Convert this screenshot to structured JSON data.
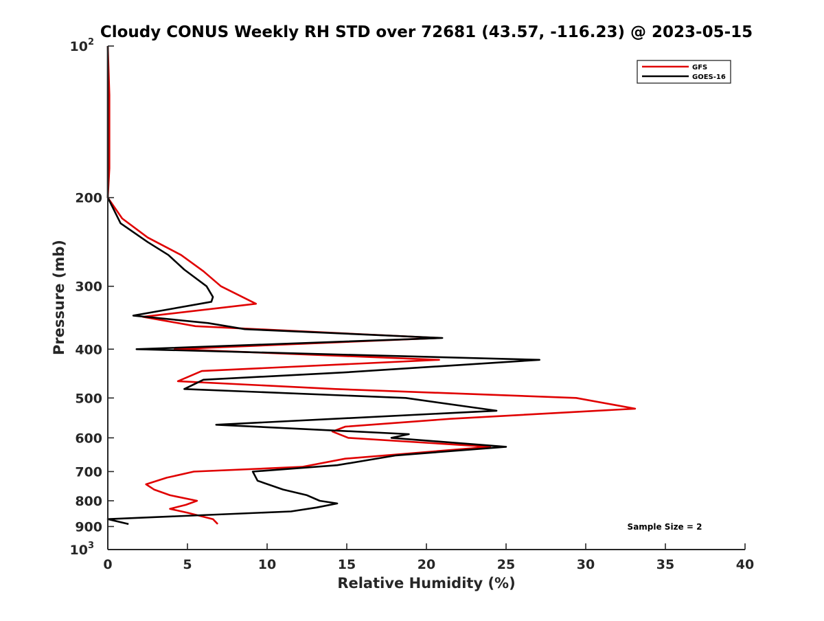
{
  "chart_data": {
    "type": "line",
    "title": "Cloudy CONUS Weekly RH STD over 72681 (43.57, -116.23) @ 2023-05-15",
    "xlabel": "Relative Humidity (%)",
    "ylabel": "Pressure (mb)",
    "xlim": [
      0,
      40
    ],
    "ylim": [
      1000,
      100
    ],
    "y_scale": "log",
    "y_reversed": true,
    "grid": false,
    "legend_position": "top-right",
    "x_ticks": [
      {
        "value": 0,
        "label": "0"
      },
      {
        "value": 5,
        "label": "5"
      },
      {
        "value": 10,
        "label": "10"
      },
      {
        "value": 15,
        "label": "15"
      },
      {
        "value": 20,
        "label": "20"
      },
      {
        "value": 25,
        "label": "25"
      },
      {
        "value": 30,
        "label": "30"
      },
      {
        "value": 35,
        "label": "35"
      },
      {
        "value": 40,
        "label": "40"
      }
    ],
    "y_ticks": [
      {
        "value": 100,
        "base": "10",
        "exp": "2"
      },
      {
        "value": 200,
        "base": "200",
        "exp": ""
      },
      {
        "value": 300,
        "base": "300",
        "exp": ""
      },
      {
        "value": 400,
        "base": "400",
        "exp": ""
      },
      {
        "value": 500,
        "base": "500",
        "exp": ""
      },
      {
        "value": 600,
        "base": "600",
        "exp": ""
      },
      {
        "value": 700,
        "base": "700",
        "exp": ""
      },
      {
        "value": 800,
        "base": "800",
        "exp": ""
      },
      {
        "value": 900,
        "base": "900",
        "exp": ""
      },
      {
        "value": 1000,
        "base": "10",
        "exp": "3"
      }
    ],
    "annotation": "Sample Size = 2",
    "series": [
      {
        "name": "GFS",
        "color": "#e00000",
        "points": [
          [
            0,
            100
          ],
          [
            0.1,
            125
          ],
          [
            0.1,
            150
          ],
          [
            0.1,
            175
          ],
          [
            0,
            200
          ],
          [
            0.9,
            220
          ],
          [
            2.5,
            240
          ],
          [
            4.6,
            260
          ],
          [
            6,
            280
          ],
          [
            7.1,
            300
          ],
          [
            9.3,
            325
          ],
          [
            2.2,
            345
          ],
          [
            5.5,
            360
          ],
          [
            20.8,
            380
          ],
          [
            4.2,
            400
          ],
          [
            20.8,
            420
          ],
          [
            5.9,
            442
          ],
          [
            4.4,
            463
          ],
          [
            14.3,
            480
          ],
          [
            29.4,
            500
          ],
          [
            33.1,
            525
          ],
          [
            21.5,
            550
          ],
          [
            14.9,
            570
          ],
          [
            14.1,
            583
          ],
          [
            15.1,
            600
          ],
          [
            24,
            625
          ],
          [
            14.9,
            660
          ],
          [
            12.2,
            685
          ],
          [
            5.4,
            700
          ],
          [
            3.7,
            720
          ],
          [
            2.4,
            742
          ],
          [
            2.9,
            760
          ],
          [
            3.9,
            780
          ],
          [
            5.6,
            800
          ],
          [
            4.9,
            815
          ],
          [
            3.9,
            830
          ],
          [
            5,
            845
          ],
          [
            6.6,
            870
          ],
          [
            6.9,
            890
          ]
        ]
      },
      {
        "name": "GOES-16",
        "color": "#000000",
        "points": [
          [
            0,
            100
          ],
          [
            0,
            125
          ],
          [
            0,
            150
          ],
          [
            0,
            175
          ],
          [
            0,
            200
          ],
          [
            0.8,
            225
          ],
          [
            2.5,
            245
          ],
          [
            3.8,
            260
          ],
          [
            4.8,
            278
          ],
          [
            6.2,
            300
          ],
          [
            6.6,
            315
          ],
          [
            6.5,
            322
          ],
          [
            1.6,
            343
          ],
          [
            6.3,
            355
          ],
          [
            8.6,
            365
          ],
          [
            21,
            380
          ],
          [
            1.8,
            400
          ],
          [
            27.1,
            420
          ],
          [
            14.8,
            445
          ],
          [
            6,
            460
          ],
          [
            4.8,
            480
          ],
          [
            18.7,
            500
          ],
          [
            24.4,
            530
          ],
          [
            6.8,
            565
          ],
          [
            18.9,
            590
          ],
          [
            17.8,
            600
          ],
          [
            25,
            625
          ],
          [
            18.1,
            650
          ],
          [
            14.4,
            680
          ],
          [
            9.1,
            700
          ],
          [
            9.4,
            730
          ],
          [
            11,
            760
          ],
          [
            12.5,
            780
          ],
          [
            13.3,
            800
          ],
          [
            14.4,
            810
          ],
          [
            13.1,
            825
          ],
          [
            11.5,
            840
          ],
          [
            0,
            870
          ],
          [
            1.3,
            890
          ]
        ]
      }
    ]
  }
}
